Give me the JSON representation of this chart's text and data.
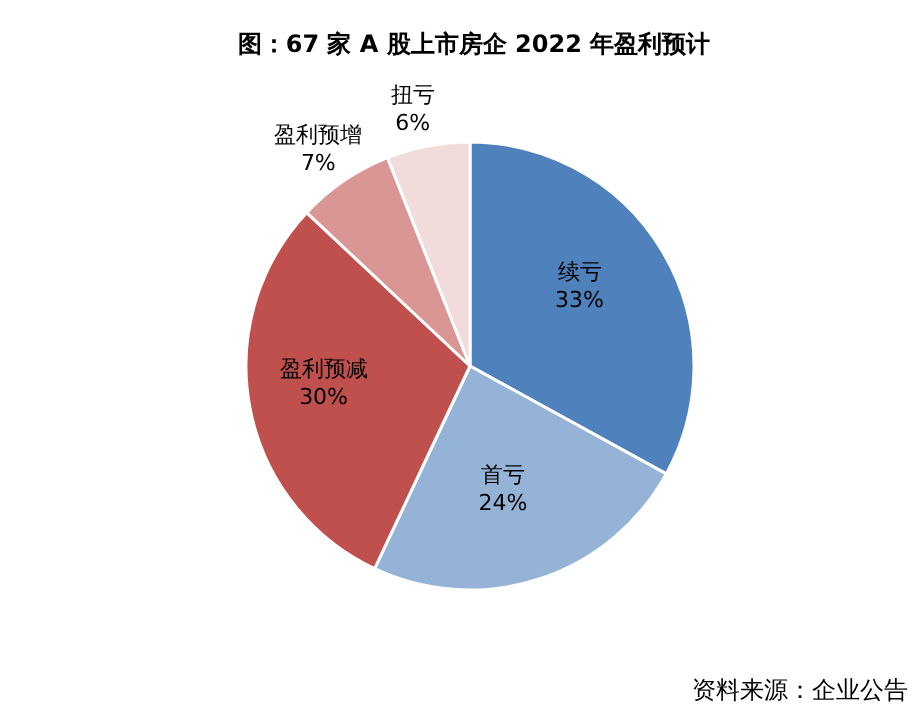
{
  "chart_data": {
    "type": "pie",
    "title": "图：67 家 A 股上市房企 2022 年盈利预计",
    "categories": [
      "续亏",
      "首亏",
      "盈利预减",
      "盈利预增",
      "扭亏"
    ],
    "values": [
      33,
      24,
      30,
      7,
      6
    ],
    "value_labels": [
      "33%",
      "24%",
      "30%",
      "7%",
      "6%"
    ],
    "colors": [
      "#4f81bd",
      "#95b3d7",
      "#c0504d",
      "#d99694",
      "#f2dcdb"
    ],
    "legend": false,
    "annotations": [
      "资料来源：企业公告"
    ]
  }
}
